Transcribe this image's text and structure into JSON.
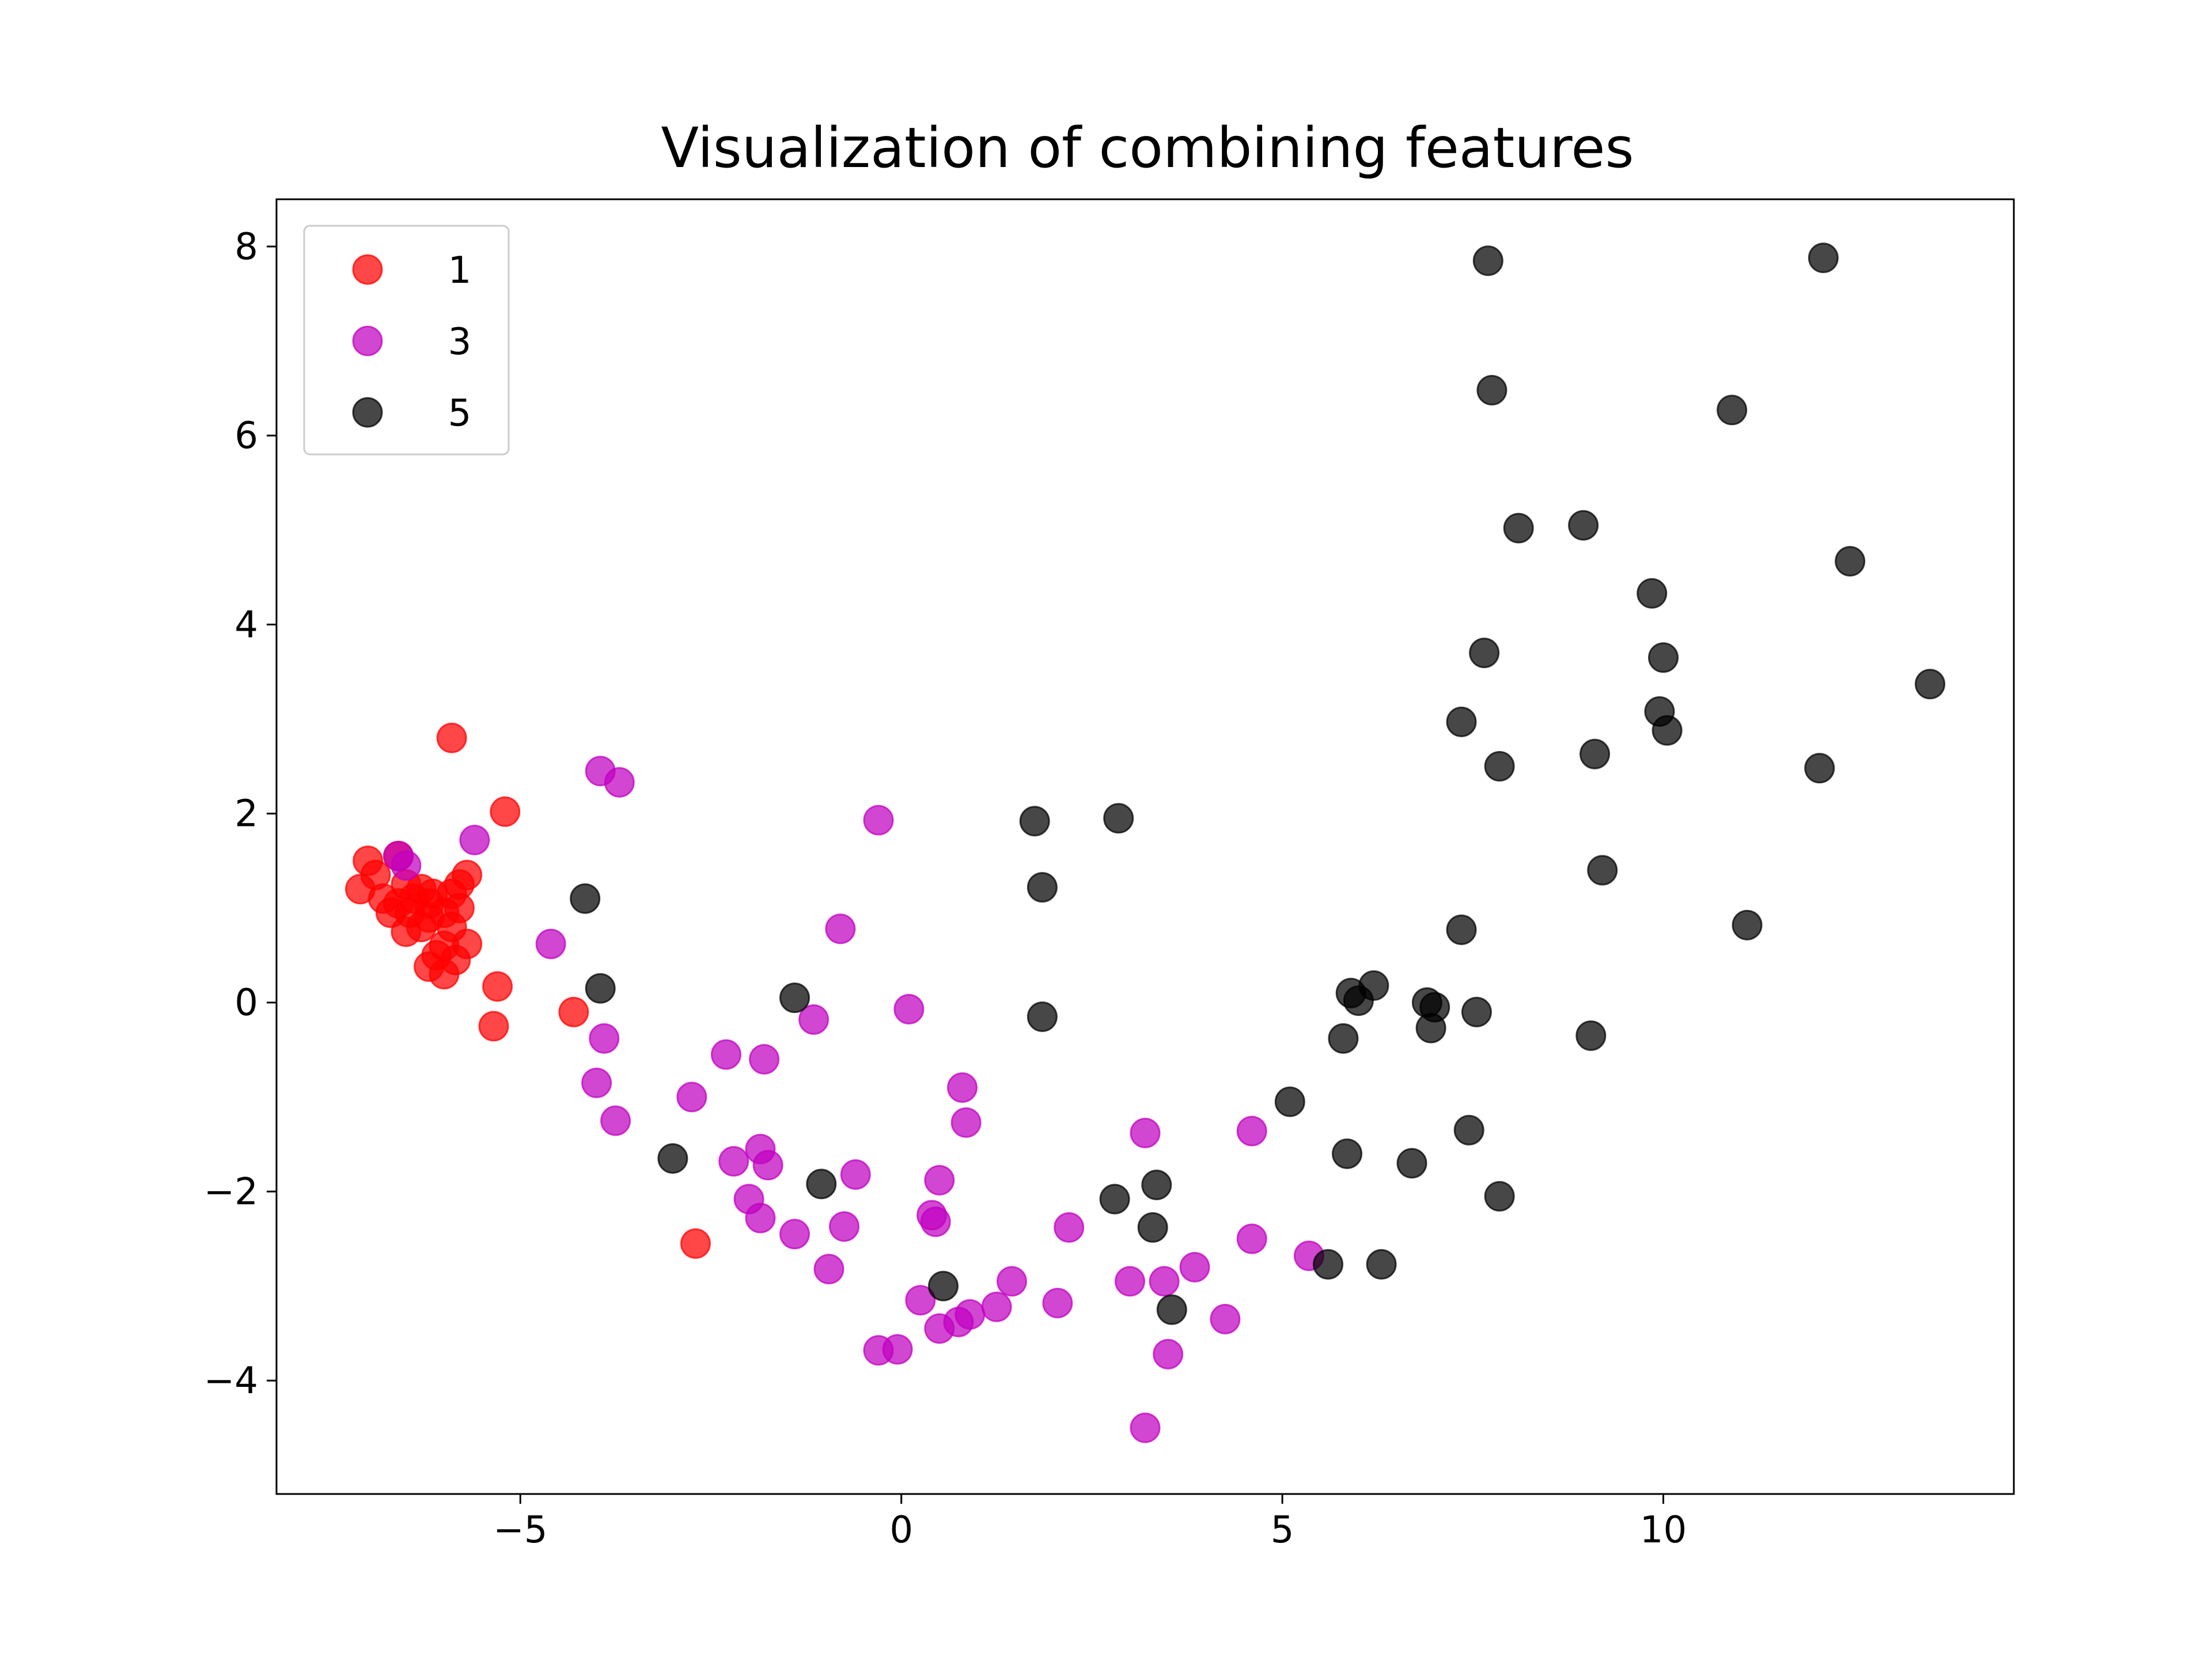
{
  "chart_data": {
    "type": "scatter",
    "title": "Visualization of combining features",
    "xlabel": "",
    "ylabel": "",
    "xlim": [
      -8.2,
      14.6
    ],
    "ylim": [
      -5.2,
      8.5
    ],
    "x_ticks": [
      -5,
      0,
      5,
      10
    ],
    "x_tick_labels": [
      "−5",
      "0",
      "5",
      "10"
    ],
    "y_ticks": [
      -4,
      -2,
      0,
      2,
      4,
      6,
      8
    ],
    "y_tick_labels": [
      "−4",
      "−2",
      "0",
      "2",
      "4",
      "6",
      "8"
    ],
    "grid": false,
    "legend_position": "upper-left",
    "series": [
      {
        "name": "1",
        "color": "#ff0000",
        "points": [
          [
            -5.9,
            2.8
          ],
          [
            -5.2,
            2.02
          ],
          [
            -7.0,
            1.5
          ],
          [
            -6.6,
            1.55
          ],
          [
            -6.9,
            1.35
          ],
          [
            -7.1,
            1.2
          ],
          [
            -6.8,
            1.1
          ],
          [
            -6.7,
            0.95
          ],
          [
            -6.5,
            1.25
          ],
          [
            -6.4,
            1.1
          ],
          [
            -6.3,
            1.2
          ],
          [
            -6.2,
            0.9
          ],
          [
            -6.5,
            0.75
          ],
          [
            -6.3,
            0.8
          ],
          [
            -6.2,
            1.05
          ],
          [
            -6.0,
            0.95
          ],
          [
            -5.9,
            1.15
          ],
          [
            -5.8,
            1.25
          ],
          [
            -5.7,
            1.35
          ],
          [
            -5.8,
            1.0
          ],
          [
            -5.9,
            0.8
          ],
          [
            -6.0,
            0.6
          ],
          [
            -5.7,
            0.62
          ],
          [
            -6.1,
            0.5
          ],
          [
            -6.2,
            0.38
          ],
          [
            -6.0,
            0.3
          ],
          [
            -5.85,
            0.45
          ],
          [
            -6.6,
            1.05
          ],
          [
            -6.45,
            0.95
          ],
          [
            -6.15,
            1.15
          ],
          [
            -5.3,
            0.17
          ],
          [
            -5.35,
            -0.25
          ],
          [
            -4.3,
            -0.1
          ],
          [
            -2.7,
            -2.55
          ]
        ]
      },
      {
        "name": "3",
        "color": "#c000c0",
        "points": [
          [
            -6.6,
            1.55
          ],
          [
            -6.5,
            1.45
          ],
          [
            -5.6,
            1.72
          ],
          [
            -3.95,
            2.45
          ],
          [
            -3.7,
            2.33
          ],
          [
            -4.6,
            0.62
          ],
          [
            -3.9,
            -0.38
          ],
          [
            -4.0,
            -0.85
          ],
          [
            -3.75,
            -1.25
          ],
          [
            -2.75,
            -1.0
          ],
          [
            -2.3,
            -0.55
          ],
          [
            -1.8,
            -0.6
          ],
          [
            -2.2,
            -1.68
          ],
          [
            -1.85,
            -1.55
          ],
          [
            -1.75,
            -1.72
          ],
          [
            -2.0,
            -2.08
          ],
          [
            -1.85,
            -2.28
          ],
          [
            -1.4,
            -2.45
          ],
          [
            -0.95,
            -2.82
          ],
          [
            -1.15,
            -0.18
          ],
          [
            -0.3,
            1.93
          ],
          [
            -0.8,
            0.78
          ],
          [
            0.1,
            -0.07
          ],
          [
            -0.6,
            -1.82
          ],
          [
            -0.75,
            -2.37
          ],
          [
            0.4,
            -2.25
          ],
          [
            0.45,
            -2.32
          ],
          [
            0.5,
            -1.88
          ],
          [
            0.8,
            -0.9
          ],
          [
            0.85,
            -1.27
          ],
          [
            0.25,
            -3.15
          ],
          [
            0.5,
            -3.45
          ],
          [
            0.75,
            -3.38
          ],
          [
            0.9,
            -3.3
          ],
          [
            1.25,
            -3.22
          ],
          [
            1.45,
            -2.95
          ],
          [
            -0.3,
            -3.68
          ],
          [
            -0.05,
            -3.67
          ],
          [
            2.05,
            -3.18
          ],
          [
            2.2,
            -2.38
          ],
          [
            3.0,
            -2.95
          ],
          [
            3.2,
            -1.38
          ],
          [
            3.45,
            -2.95
          ],
          [
            3.85,
            -2.8
          ],
          [
            3.5,
            -3.72
          ],
          [
            4.25,
            -3.35
          ],
          [
            4.6,
            -1.36
          ],
          [
            4.6,
            -2.5
          ],
          [
            5.35,
            -2.68
          ],
          [
            3.2,
            -4.5
          ]
        ]
      },
      {
        "name": "5",
        "color": "#000000",
        "points": [
          [
            7.7,
            7.85
          ],
          [
            12.1,
            7.88
          ],
          [
            7.75,
            6.48
          ],
          [
            10.9,
            6.27
          ],
          [
            8.1,
            5.02
          ],
          [
            8.95,
            5.05
          ],
          [
            12.45,
            4.67
          ],
          [
            9.85,
            4.33
          ],
          [
            7.65,
            3.7
          ],
          [
            10.0,
            3.65
          ],
          [
            13.5,
            3.37
          ],
          [
            9.95,
            3.08
          ],
          [
            7.35,
            2.97
          ],
          [
            10.05,
            2.88
          ],
          [
            9.1,
            2.63
          ],
          [
            7.85,
            2.5
          ],
          [
            12.05,
            2.48
          ],
          [
            9.2,
            1.4
          ],
          [
            11.1,
            0.82
          ],
          [
            7.35,
            0.77
          ],
          [
            -4.15,
            1.1
          ],
          [
            -3.95,
            0.15
          ],
          [
            -1.4,
            0.05
          ],
          [
            1.75,
            1.92
          ],
          [
            2.85,
            1.95
          ],
          [
            1.85,
            1.22
          ],
          [
            1.85,
            -0.15
          ],
          [
            5.9,
            0.1
          ],
          [
            6.0,
            0.02
          ],
          [
            6.2,
            0.18
          ],
          [
            6.9,
            0.0
          ],
          [
            7.0,
            -0.05
          ],
          [
            6.95,
            -0.27
          ],
          [
            7.55,
            -0.1
          ],
          [
            9.05,
            -0.35
          ],
          [
            5.8,
            -0.38
          ],
          [
            5.1,
            -1.05
          ],
          [
            5.85,
            -1.6
          ],
          [
            6.7,
            -1.7
          ],
          [
            7.45,
            -1.35
          ],
          [
            7.85,
            -2.05
          ],
          [
            -3.0,
            -1.65
          ],
          [
            -1.05,
            -1.92
          ],
          [
            2.8,
            -2.08
          ],
          [
            3.35,
            -1.93
          ],
          [
            3.3,
            -2.38
          ],
          [
            5.6,
            -2.77
          ],
          [
            6.3,
            -2.77
          ],
          [
            0.55,
            -3.0
          ],
          [
            3.55,
            -3.25
          ]
        ]
      }
    ]
  }
}
